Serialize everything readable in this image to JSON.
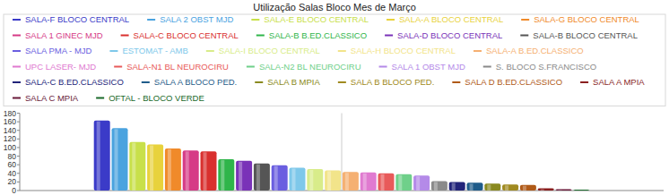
{
  "chart_data": {
    "type": "bar",
    "title": "Utilização Salas Bloco Mes de Março",
    "categories": [
      null
    ],
    "ylim": [
      0,
      180
    ],
    "yticks": [
      0,
      20,
      40,
      60,
      80,
      100,
      120,
      140,
      160,
      180
    ],
    "grid": false,
    "series": [
      {
        "name": "SALA-F BLOCO CENTRAL",
        "color": "#3b3bc8",
        "values": [
          163
        ]
      },
      {
        "name": "SALA 2 OBST MJD",
        "color": "#4aa3df",
        "values": [
          145
        ]
      },
      {
        "name": "SALA-E BLOCO CENTRAL",
        "color": "#c8e04a",
        "values": [
          113
        ]
      },
      {
        "name": "SALA-A BLOCO CENTRAL",
        "color": "#e8d23c",
        "values": [
          107
        ]
      },
      {
        "name": "SALA-G BLOCO CENTRAL",
        "color": "#f08a2a",
        "values": [
          98
        ]
      },
      {
        "name": "SALA 1 GINEC MJD",
        "color": "#d63a86",
        "values": [
          93
        ]
      },
      {
        "name": "SALA-C BLOCO CENTRAL",
        "color": "#d9302e",
        "values": [
          91
        ]
      },
      {
        "name": "SALA-B B.ED.CLASSICO",
        "color": "#2fb54a",
        "values": [
          73
        ]
      },
      {
        "name": "SALA-D BLOCO CENTRAL",
        "color": "#7a32b8",
        "values": [
          69
        ]
      },
      {
        "name": "SALA-B BLOCO CENTRAL",
        "color": "#555555",
        "values": [
          63
        ]
      },
      {
        "name": "SALA PMA - MJD",
        "color": "#6a5ee0",
        "values": [
          59
        ]
      },
      {
        "name": "ESTOMAT - AMB",
        "color": "#7ec8ea",
        "values": [
          53
        ]
      },
      {
        "name": "SALA-I BLOCO CENTRAL",
        "color": "#d8ec8a",
        "values": [
          50
        ]
      },
      {
        "name": "SALA-H BLOCO CENTRAL",
        "color": "#f2e48a",
        "values": [
          47
        ]
      },
      {
        "name": "SALA-A B.ED.CLASSICO",
        "color": "#f5b072",
        "values": [
          43
        ]
      },
      {
        "name": "UPC LASER- MJD",
        "color": "#e07ad0",
        "values": [
          42
        ]
      },
      {
        "name": "SALA-N1 BL NEUROCIRU",
        "color": "#e85a5a",
        "values": [
          40
        ]
      },
      {
        "name": "SALA-N2 BL NEUROCIRU",
        "color": "#6fd08a",
        "values": [
          38
        ]
      },
      {
        "name": "SALA 1 OBST MJD",
        "color": "#b48ae8",
        "values": [
          35
        ]
      },
      {
        "name": "S. BLOCO S.FRANCISCO",
        "color": "#8a8a8a",
        "values": [
          22
        ]
      },
      {
        "name": "SALA-C B.ED.CLASSICO",
        "color": "#22247a",
        "values": [
          20
        ]
      },
      {
        "name": "SALA A BLOCO PED.",
        "color": "#1f5c8a",
        "values": [
          18
        ]
      },
      {
        "name": "SALA B MPIA",
        "color": "#8a8a20",
        "values": [
          16
        ]
      },
      {
        "name": "SALA B BLOCO PED.",
        "color": "#a08a20",
        "values": [
          14
        ]
      },
      {
        "name": "SALA D B.ED.CLASSICO",
        "color": "#b05a18",
        "values": [
          13
        ]
      },
      {
        "name": "SALA A MPIA",
        "color": "#8a1f1f",
        "values": [
          5
        ]
      },
      {
        "name": "SALA C MPIA",
        "color": "#6a1a3a",
        "values": [
          3
        ]
      },
      {
        "name": "OFTAL - BLOCO VERDE",
        "color": "#1a6a2a",
        "values": [
          2
        ]
      }
    ]
  }
}
